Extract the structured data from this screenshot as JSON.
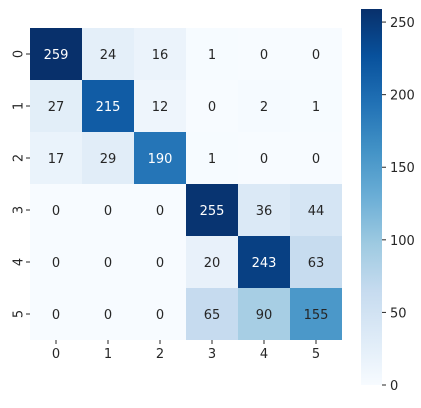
{
  "chart_data": {
    "type": "heatmap",
    "title": "",
    "xlabel": "",
    "ylabel": "",
    "x_categories": [
      "0",
      "1",
      "2",
      "3",
      "4",
      "5"
    ],
    "y_categories": [
      "0",
      "1",
      "2",
      "3",
      "4",
      "5"
    ],
    "values": [
      [
        259,
        24,
        16,
        1,
        0,
        0
      ],
      [
        27,
        215,
        12,
        0,
        2,
        1
      ],
      [
        17,
        29,
        190,
        1,
        0,
        0
      ],
      [
        0,
        0,
        0,
        255,
        36,
        44
      ],
      [
        0,
        0,
        0,
        20,
        243,
        63
      ],
      [
        0,
        0,
        0,
        65,
        90,
        155
      ]
    ],
    "colorbar": {
      "range": [
        0,
        259
      ],
      "ticks": [
        "0",
        "50",
        "100",
        "150",
        "200",
        "250"
      ],
      "tick_values": [
        0,
        50,
        100,
        150,
        200,
        250
      ],
      "colormap": "Blues",
      "low_color": "#f7fbff",
      "high_color": "#08306b"
    },
    "grid": false,
    "annotated": true
  }
}
